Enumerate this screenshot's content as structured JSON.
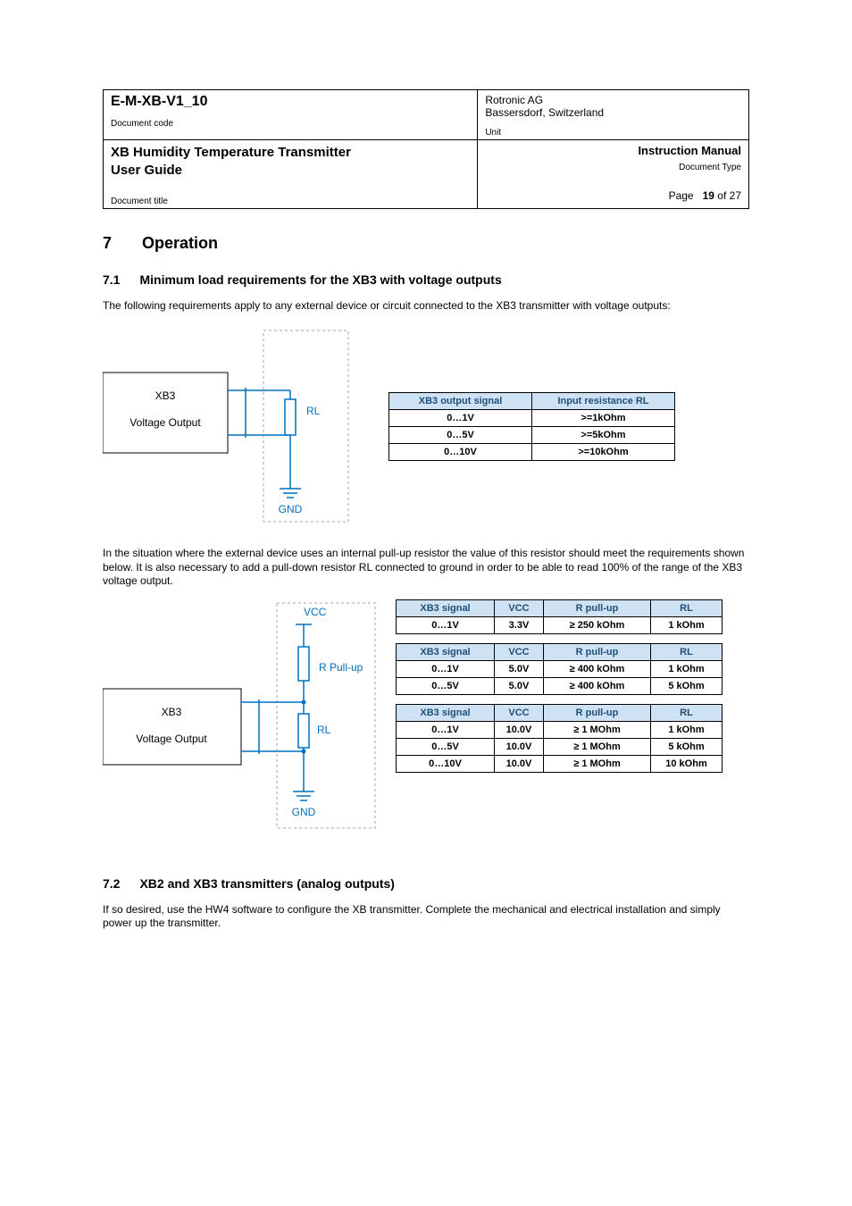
{
  "header": {
    "doc_code": "E-M-XB-V1_10",
    "doc_code_label": "Document code",
    "company1": "Rotronic AG",
    "company2": "Bassersdorf, Switzerland",
    "unit_label": "Unit",
    "product_title1": "XB Humidity Temperature Transmitter",
    "product_title2": "User Guide",
    "doc_title_label": "Document title",
    "right_title": "Instruction Manual",
    "doc_type_label": "Document Type",
    "page_label": "Page",
    "page_num": "19",
    "page_of": " of 27"
  },
  "sec7": {
    "num": "7",
    "title": "Operation"
  },
  "sec71": {
    "num": "7.1",
    "title": "Minimum load requirements for the XB3 with voltage outputs",
    "intro": "The following requirements apply to any external device or circuit connected to the XB3 transmitter with voltage outputs:",
    "mid_para": "In the situation where the external device uses an internal pull-up resistor the value of this resistor should meet the requirements shown below. It is also necessary to add a pull-down resistor RL connected to ground in order to be able to read 100% of the range of the XB3 voltage output."
  },
  "diagram": {
    "box1": "XB3",
    "box2": "Voltage Output",
    "rl": "RL",
    "gnd": "GND",
    "vcc": "VCC",
    "rpullup": "R Pull-up",
    "colors": {
      "blue": "#0070c0",
      "border": "#9aa5b1"
    }
  },
  "table1": {
    "headers": [
      "XB3 output signal",
      "Input resistance RL"
    ],
    "rows": [
      [
        "0…1V",
        ">=1kOhm"
      ],
      [
        "0…5V",
        ">=5kOhm"
      ],
      [
        "0…10V",
        ">=10kOhm"
      ]
    ]
  },
  "tablesB": {
    "headers": [
      "XB3 signal",
      "VCC",
      "R pull-up",
      "RL"
    ],
    "groups": [
      {
        "rows": [
          [
            "0…1V",
            "3.3V",
            "≥ 250 kOhm",
            "1 kOhm"
          ]
        ]
      },
      {
        "rows": [
          [
            "0…1V",
            "5.0V",
            "≥ 400 kOhm",
            "1 kOhm"
          ],
          [
            "0…5V",
            "5.0V",
            "≥ 400 kOhm",
            "5 kOhm"
          ]
        ]
      },
      {
        "rows": [
          [
            "0…1V",
            "10.0V",
            "≥ 1 MOhm",
            "1 kOhm"
          ],
          [
            "0…5V",
            "10.0V",
            "≥ 1 MOhm",
            "5 kOhm"
          ],
          [
            "0…10V",
            "10.0V",
            "≥ 1 MOhm",
            "10 kOhm"
          ]
        ]
      }
    ]
  },
  "sec72": {
    "num": "7.2",
    "title": "XB2 and XB3 transmitters (analog outputs)",
    "body": "If so desired, use the HW4 software to configure the XB transmitter. Complete the mechanical and electrical installation and simply power up the transmitter."
  }
}
